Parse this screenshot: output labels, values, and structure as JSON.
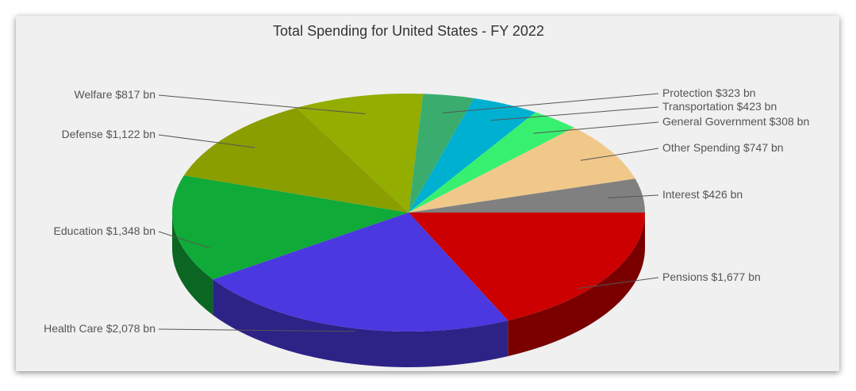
{
  "chart_data": {
    "type": "pie",
    "title": "Total Spending for United States - FY 2022",
    "categories": [
      "Pensions",
      "Health Care",
      "Education",
      "Defense",
      "Welfare",
      "Protection",
      "Transportation",
      "General Government",
      "Other Spending",
      "Interest"
    ],
    "values": [
      1677,
      2078,
      1348,
      1122,
      817,
      323,
      423,
      308,
      747,
      426
    ],
    "value_labels": [
      "$1,677 bn",
      "$2,078 bn",
      "$1,348 bn",
      "$1,122 bn",
      "$817 bn",
      "$323 bn",
      "$423 bn",
      "$308 bn",
      "$747 bn",
      "$426 bn"
    ],
    "colors": [
      "#cc0000",
      "#4b38e0",
      "#10aa38",
      "#8a9e00",
      "#93ad00",
      "#3aad6e",
      "#00b0d0",
      "#38f070",
      "#f0c88a",
      "#808080"
    ]
  }
}
